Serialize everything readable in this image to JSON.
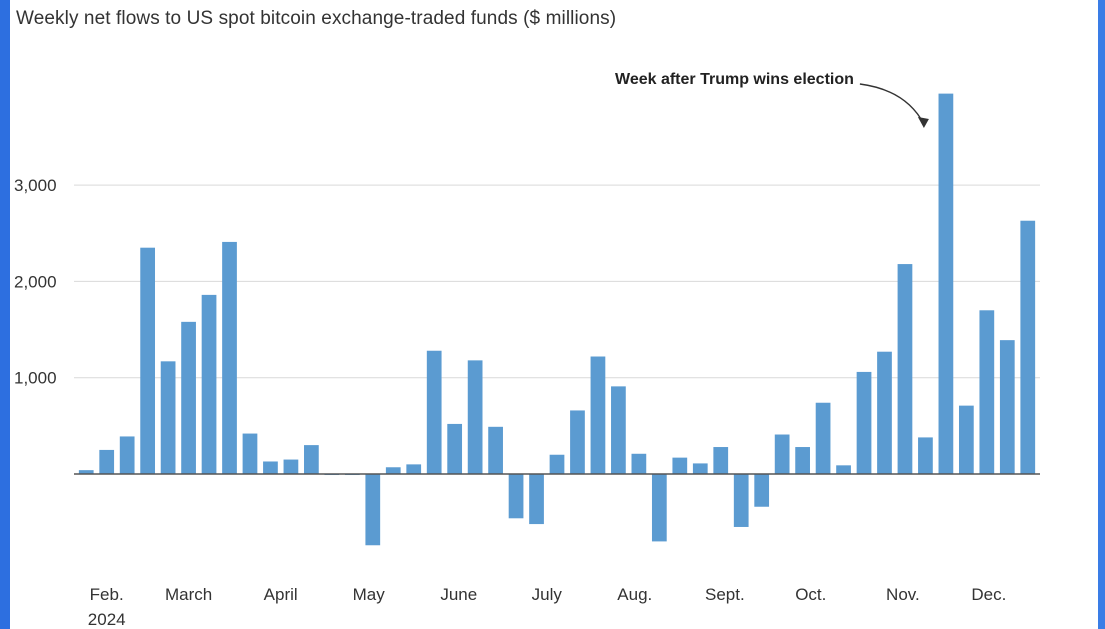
{
  "chart_data": {
    "type": "bar",
    "title": "Weekly net flows to US spot bitcoin exchange-traded funds ($ millions)",
    "xlabel": "",
    "ylabel": "",
    "ylim": [
      -800,
      4000
    ],
    "yticks": [
      1000,
      2000,
      3000
    ],
    "ytick_labels": [
      "1,000",
      "2,000",
      "3,000"
    ],
    "grid": true,
    "bar_color": "#5b9bd1",
    "values": [
      40,
      250,
      390,
      2350,
      1170,
      1580,
      1860,
      2410,
      420,
      130,
      150,
      300,
      5,
      5,
      -740,
      70,
      100,
      1280,
      520,
      1180,
      490,
      -460,
      -520,
      200,
      660,
      1220,
      910,
      210,
      -700,
      170,
      110,
      280,
      -550,
      -340,
      410,
      280,
      740,
      90,
      1060,
      1270,
      2180,
      380,
      3950,
      710,
      1700,
      1390,
      2630
    ],
    "month_labels": [
      {
        "label": "Feb.",
        "bar": 1.0
      },
      {
        "label": "March",
        "bar": 5.0
      },
      {
        "label": "April",
        "bar": 9.5
      },
      {
        "label": "May",
        "bar": 13.8
      },
      {
        "label": "June",
        "bar": 18.2
      },
      {
        "label": "July",
        "bar": 22.5
      },
      {
        "label": "Aug.",
        "bar": 26.8
      },
      {
        "label": "Sept.",
        "bar": 31.2
      },
      {
        "label": "Oct.",
        "bar": 35.4
      },
      {
        "label": "Nov.",
        "bar": 39.9
      },
      {
        "label": "Dec.",
        "bar": 44.1
      }
    ],
    "year_label": "2024",
    "annotation": {
      "text": "Week after Trump wins election",
      "bar": 42
    }
  }
}
